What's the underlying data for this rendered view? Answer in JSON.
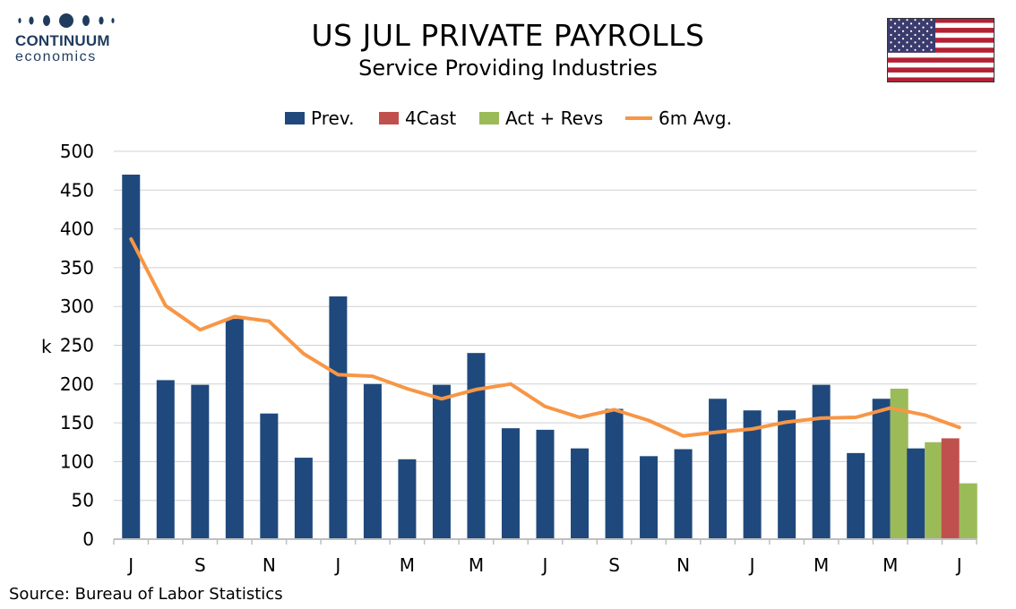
{
  "brand": {
    "name_line1": "CONTINUUM",
    "name_line2": "economics",
    "color": "#1f3c5e"
  },
  "header": {
    "title": "US JUL PRIVATE PAYROLLS",
    "subtitle": "Service Providing Industries"
  },
  "flag_icon": "us-flag-icon",
  "source": "Source: Bureau of Labor Statistics",
  "colors": {
    "prev": "#1f497d",
    "forecast": "#c0504d",
    "actual": "#9bbb59",
    "avg": "#f79646",
    "grid": "#d0d0d0",
    "axis": "#bfbfbf"
  },
  "chart_data": {
    "type": "bar",
    "title": "US JUL PRIVATE PAYROLLS",
    "subtitle": "Service Providing Industries",
    "ylabel": "k",
    "xlabel": "",
    "ylim": [
      0,
      500
    ],
    "yticks": [
      0,
      50,
      100,
      150,
      200,
      250,
      300,
      350,
      400,
      450,
      500
    ],
    "grid": true,
    "legend_position": "top",
    "x_tick_labels": [
      "J",
      "",
      "S",
      "",
      "N",
      "",
      "J",
      "",
      "M",
      "",
      "M",
      "",
      "J",
      "",
      "S",
      "",
      "N",
      "",
      "J",
      "",
      "M",
      "",
      "M",
      "",
      "J"
    ],
    "series": [
      {
        "name": "Prev.",
        "type": "bar",
        "values": [
          470,
          205,
          199,
          284,
          162,
          105,
          313,
          200,
          103,
          199,
          240,
          143,
          141,
          117,
          168,
          107,
          116,
          181,
          166,
          166,
          199,
          111,
          181,
          117,
          null
        ]
      },
      {
        "name": "4Cast",
        "type": "bar",
        "values": [
          null,
          null,
          null,
          null,
          null,
          null,
          null,
          null,
          null,
          null,
          null,
          null,
          null,
          null,
          null,
          null,
          null,
          null,
          null,
          null,
          null,
          null,
          null,
          null,
          130
        ]
      },
      {
        "name": "Act + Revs",
        "type": "bar",
        "values": [
          null,
          null,
          null,
          null,
          null,
          null,
          null,
          null,
          null,
          null,
          null,
          null,
          null,
          null,
          null,
          null,
          null,
          null,
          null,
          null,
          null,
          null,
          194,
          125,
          72
        ]
      },
      {
        "name": "6m Avg.",
        "type": "line",
        "values": [
          387,
          301,
          270,
          287,
          281,
          239,
          212,
          210,
          194,
          181,
          193,
          200,
          171,
          157,
          167,
          153,
          133,
          138,
          142,
          151,
          156,
          157,
          169,
          160,
          144
        ]
      }
    ]
  }
}
